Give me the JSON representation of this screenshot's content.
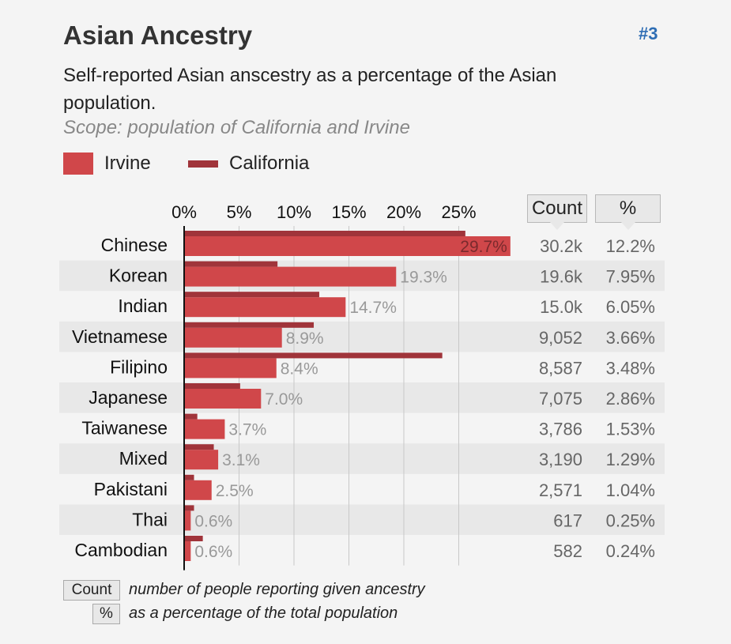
{
  "header": {
    "title": "Asian Ancestry",
    "rank": "#3",
    "subtitle": "Self-reported Asian anscestry as a percentage of the Asian population.",
    "scope": "Scope: population of California and Irvine"
  },
  "legend": {
    "irvine": "Irvine",
    "california": "California"
  },
  "columns": {
    "count": "Count",
    "percent": "%"
  },
  "key": {
    "count_label": "Count",
    "count_desc": "number of people reporting given ancestry",
    "percent_label": "%",
    "percent_desc": "as a percentage of the total population"
  },
  "colors": {
    "irvine": "#d0474a",
    "california": "#a0343a",
    "row_band": "#e8e8e8",
    "value_label": "#999999",
    "accent": "#2e6db4"
  },
  "chart_data": {
    "type": "bar",
    "orientation": "horizontal",
    "x_ticks": [
      "0%",
      "5%",
      "10%",
      "15%",
      "20%",
      "25%"
    ],
    "xlim": [
      0,
      30
    ],
    "categories": [
      "Chinese",
      "Korean",
      "Indian",
      "Vietnamese",
      "Filipino",
      "Japanese",
      "Taiwanese",
      "Mixed",
      "Pakistani",
      "Thai",
      "Cambodian"
    ],
    "series": [
      {
        "name": "Irvine",
        "values": [
          29.7,
          19.3,
          14.7,
          8.9,
          8.4,
          7.0,
          3.7,
          3.1,
          2.5,
          0.6,
          0.6
        ],
        "labels": [
          "29.7%",
          "19.3%",
          "14.7%",
          "8.9%",
          "8.4%",
          "7.0%",
          "3.7%",
          "3.1%",
          "2.5%",
          "0.6%",
          "0.6%"
        ]
      },
      {
        "name": "California",
        "values": [
          25.6,
          8.5,
          12.3,
          11.8,
          23.5,
          5.1,
          1.2,
          2.7,
          0.9,
          0.9,
          1.7
        ]
      }
    ],
    "counts": [
      "30.2k",
      "19.6k",
      "15.0k",
      "9,052",
      "8,587",
      "7,075",
      "3,786",
      "3,190",
      "2,571",
      "617",
      "582"
    ],
    "percents": [
      "12.2%",
      "7.95%",
      "6.05%",
      "3.66%",
      "3.48%",
      "2.86%",
      "1.53%",
      "1.29%",
      "1.04%",
      "0.25%",
      "0.24%"
    ],
    "grid": true,
    "legend_position": "top-left"
  }
}
